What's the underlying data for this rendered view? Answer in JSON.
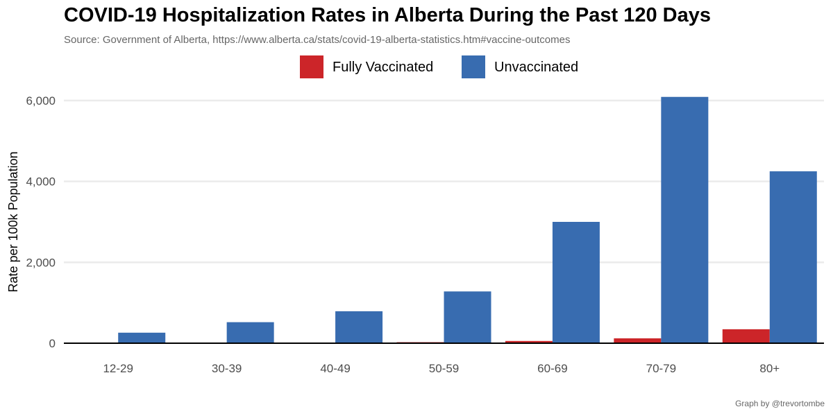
{
  "chart_data": {
    "type": "bar",
    "title": "COVID-19 Hospitalization Rates in Alberta During the Past 120 Days",
    "subtitle": "Source: Government of Alberta, https://www.alberta.ca/stats/covid-19-alberta-statistics.htm#vaccine-outcomes",
    "caption": "Graph by @trevortombe",
    "xlabel": "",
    "ylabel": "Rate per 100k Population",
    "categories": [
      "12-29",
      "30-39",
      "40-49",
      "50-59",
      "60-69",
      "70-79",
      "80+"
    ],
    "series": [
      {
        "name": "Fully Vaccinated",
        "color": "#cc2529",
        "values": [
          2,
          4,
          7,
          25,
          55,
          120,
          345
        ]
      },
      {
        "name": "Unvaccinated",
        "color": "#386cb0",
        "values": [
          260,
          520,
          790,
          1280,
          3000,
          6090,
          4250
        ]
      }
    ],
    "ylim": [
      0,
      6000
    ],
    "yticks": [
      0,
      2000,
      4000,
      6000
    ],
    "ytick_labels": [
      "0",
      "2,000",
      "4,000",
      "6,000"
    ],
    "grid": true,
    "legend_position": "top-center"
  }
}
